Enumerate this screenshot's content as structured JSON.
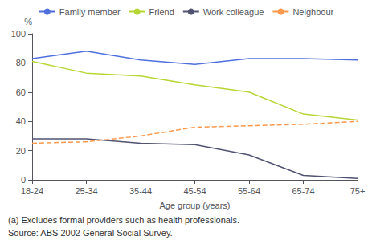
{
  "chart_data": {
    "type": "line",
    "xlabel": "Age group (years)",
    "ylabel": "%",
    "categories": [
      "18-24",
      "25-34",
      "35-44",
      "45-54",
      "55-64",
      "65-74",
      "75+"
    ],
    "series": [
      {
        "name": "Family member",
        "values": [
          83,
          88,
          82,
          79,
          83,
          83,
          82
        ]
      },
      {
        "name": "Friend",
        "values": [
          81,
          73,
          71,
          65,
          60,
          45,
          41
        ]
      },
      {
        "name": "Work colleague",
        "values": [
          28,
          28,
          25,
          24,
          17,
          3,
          1
        ]
      },
      {
        "name": "Neighbour",
        "values": [
          25,
          26,
          30,
          36,
          37,
          38,
          40
        ],
        "line_style": "dashed"
      }
    ],
    "ylim": [
      0,
      100
    ],
    "yticks": [
      0,
      20,
      40,
      60,
      80,
      100
    ],
    "grid": false,
    "legend": "top",
    "annotations": [
      "(a) Excludes formal providers such as health professionals.",
      "Source: ABS 2002 General Social Survey."
    ]
  }
}
